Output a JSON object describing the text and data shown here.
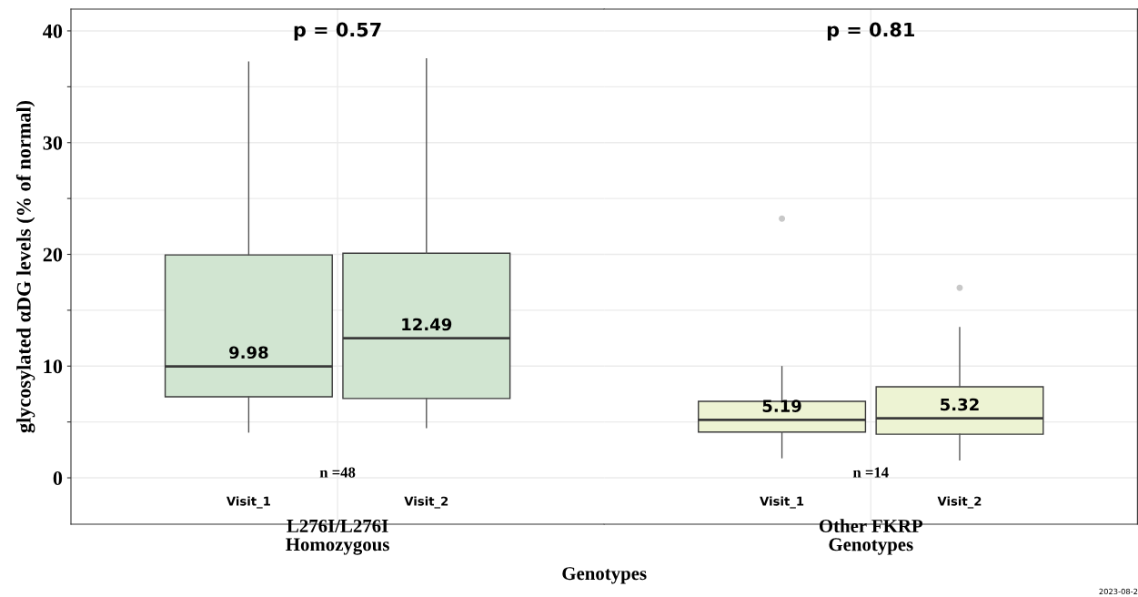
{
  "chart_data": [
    {
      "type": "box",
      "xlabel": "L276I/L276I\nHomozygous",
      "ylabel": "glycosylated αDG levels (% of normal)",
      "categories": [
        "Visit_1",
        "Visit_2"
      ],
      "series": [
        {
          "color": "#d1e5d1",
          "value_labels": [
            "9.98",
            "12.49"
          ],
          "boxes": [
            {
              "low": 4.1,
              "q1": 7.25,
              "median": 9.98,
              "q3": 19.95,
              "high": 37.2
            },
            {
              "low": 4.5,
              "q1": 7.1,
              "median": 12.49,
              "q3": 20.1,
              "high": 37.5
            }
          ]
        }
      ],
      "ylim": [
        -4.15,
        41.95
      ],
      "yticks": [
        0,
        {
          "value": 5,
          "label": null
        },
        10,
        {
          "value": 15,
          "label": null
        },
        20,
        {
          "value": 25,
          "label": null
        },
        30,
        {
          "value": 35,
          "label": null
        },
        40
      ],
      "grid": true,
      "annotations": [
        "p = 0.57",
        "n =48",
        "Genotypes"
      ]
    },
    {
      "type": "box",
      "xlabel": "Other FKRP\nGenotypes",
      "categories": [
        "Visit_1",
        "Visit_2"
      ],
      "series": [
        {
          "color": "#edf3d3",
          "value_labels": [
            "5.19",
            "5.32"
          ],
          "boxes": [
            {
              "low": 1.8,
              "q1": 4.1,
              "median": 5.19,
              "q3": 6.85,
              "high": 9.95,
              "outliers": [
                23.2
              ]
            },
            {
              "low": 1.6,
              "q1": 3.9,
              "median": 5.32,
              "q3": 8.15,
              "high": 13.45,
              "outliers": [
                17.0
              ]
            }
          ]
        }
      ],
      "ylim": [
        -4.15,
        41.95
      ],
      "yticks": [
        0,
        {
          "value": 5,
          "label": null
        },
        10,
        {
          "value": 15,
          "label": null
        },
        20,
        {
          "value": 25,
          "label": null
        },
        30,
        {
          "value": 35,
          "label": null
        },
        40
      ],
      "tick_labels": "x",
      "grid": true,
      "annotations": [
        "p = 0.81",
        "n =14",
        "2023-08-2"
      ]
    }
  ]
}
